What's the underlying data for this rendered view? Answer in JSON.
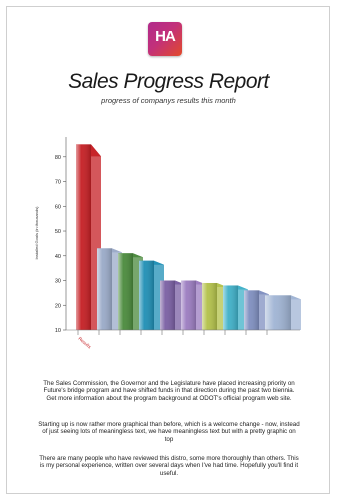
{
  "header": {
    "logo_text": "HA",
    "title": "Sales Progress Report",
    "subtitle": "progress of companys results this month"
  },
  "chart_data": {
    "type": "bar",
    "ylabel": "Installed Goals (in thousands)",
    "ylim": [
      10,
      88
    ],
    "yticks": [
      10,
      20,
      30,
      40,
      50,
      60,
      70,
      80
    ],
    "categories": [
      "Results",
      "",
      "",
      "",
      "",
      "",
      "",
      "",
      "",
      ""
    ],
    "values": [
      85,
      43,
      41,
      38,
      30,
      30,
      29,
      28,
      26,
      24
    ],
    "colors": [
      "#c51f24",
      "#9aaac8",
      "#4a8a3c",
      "#1f8fb5",
      "#7a5fa3",
      "#9b7cc0",
      "#b3c14a",
      "#3fb0c8",
      "#7f8fc0",
      "#a0b4d4"
    ],
    "grid": false
  },
  "body": {
    "paragraph1": "The Sales Commission, the Governor and the Legislature have placed increasing priority on Future's bridge program and have shifted funds in that direction during the past two biennia. Get more information about the program background at ODOT's official program web site.",
    "paragraph2": "Starting up is now rather more graphical than before, which is a welcome change - now, instead of just seeing lots of meaningless text, we have meaningless text but with a pretty graphic on top",
    "paragraph3": "There are many people who have reviewed this distro, some more thoroughly than others. This is my personal experience, written over several days when I've had time. Hopefully you'll find it useful."
  }
}
